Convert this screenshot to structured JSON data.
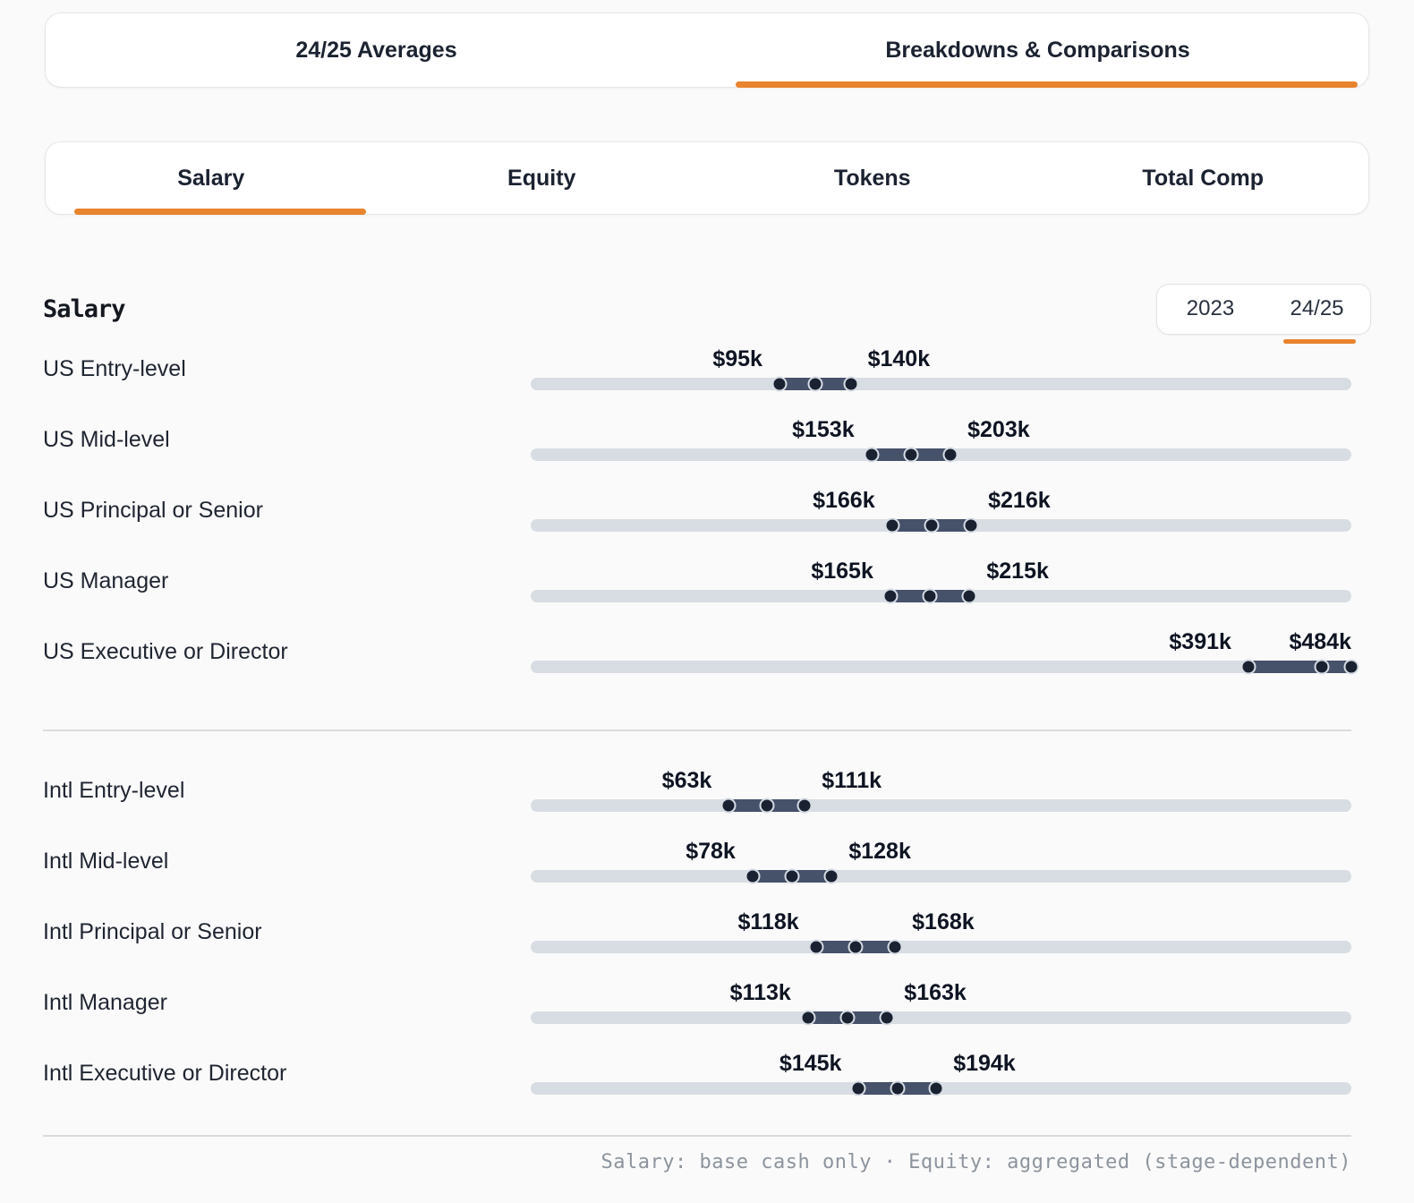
{
  "colors": {
    "accent": "#e8832e",
    "track": "#d8dde3",
    "range_fill": "#46516a",
    "dot": "#1a2232",
    "dot_ring": "#d6dce4"
  },
  "top_tabs": [
    {
      "label": "24/25 Averages",
      "active": false
    },
    {
      "label": "Breakdowns & Comparisons",
      "active": true
    }
  ],
  "metric_tabs": [
    {
      "label": "Salary",
      "active": true
    },
    {
      "label": "Equity",
      "active": false
    },
    {
      "label": "Tokens",
      "active": false
    },
    {
      "label": "Total Comp",
      "active": false
    }
  ],
  "section": {
    "title": "Salary"
  },
  "year_toggle": {
    "options": [
      {
        "label": "2023",
        "active": false
      },
      {
        "label": "24/25",
        "active": true
      }
    ]
  },
  "footer": {
    "note": "Salary: base cash only · Equity: aggregated (stage-dependent)"
  },
  "chart_data": {
    "type": "bar",
    "subtype": "horizontal-range-dumbbell",
    "title": "Salary (24/25)",
    "value_unit": "USD thousands per year",
    "dots_per_row": [
      "min",
      "midpoint",
      "max"
    ],
    "track_domain_k": [
      -62,
      456
    ],
    "groups": [
      {
        "name": "US",
        "rows": [
          {
            "label": "US Entry-level",
            "min_k": 95,
            "max_k": 140,
            "min_label": "$95k",
            "max_label": "$140k"
          },
          {
            "label": "US Mid-level",
            "min_k": 153,
            "max_k": 203,
            "min_label": "$153k",
            "max_label": "$203k"
          },
          {
            "label": "US Principal or Senior",
            "min_k": 166,
            "max_k": 216,
            "min_label": "$166k",
            "max_label": "$216k"
          },
          {
            "label": "US Manager",
            "min_k": 165,
            "max_k": 215,
            "min_label": "$165k",
            "max_label": "$215k"
          },
          {
            "label": "US Executive or Director",
            "min_k": 391,
            "max_k": 484,
            "min_label": "$391k",
            "max_label": "$484k"
          }
        ]
      },
      {
        "name": "International",
        "rows": [
          {
            "label": "Intl Entry-level",
            "min_k": 63,
            "max_k": 111,
            "min_label": "$63k",
            "max_label": "$111k"
          },
          {
            "label": "Intl Mid-level",
            "min_k": 78,
            "max_k": 128,
            "min_label": "$78k",
            "max_label": "$128k"
          },
          {
            "label": "Intl Principal or Senior",
            "min_k": 118,
            "max_k": 168,
            "min_label": "$118k",
            "max_label": "$168k"
          },
          {
            "label": "Intl Manager",
            "min_k": 113,
            "max_k": 163,
            "min_label": "$113k",
            "max_label": "$163k"
          },
          {
            "label": "Intl Executive or Director",
            "min_k": 145,
            "max_k": 194,
            "min_label": "$145k",
            "max_label": "$194k"
          }
        ]
      }
    ]
  }
}
